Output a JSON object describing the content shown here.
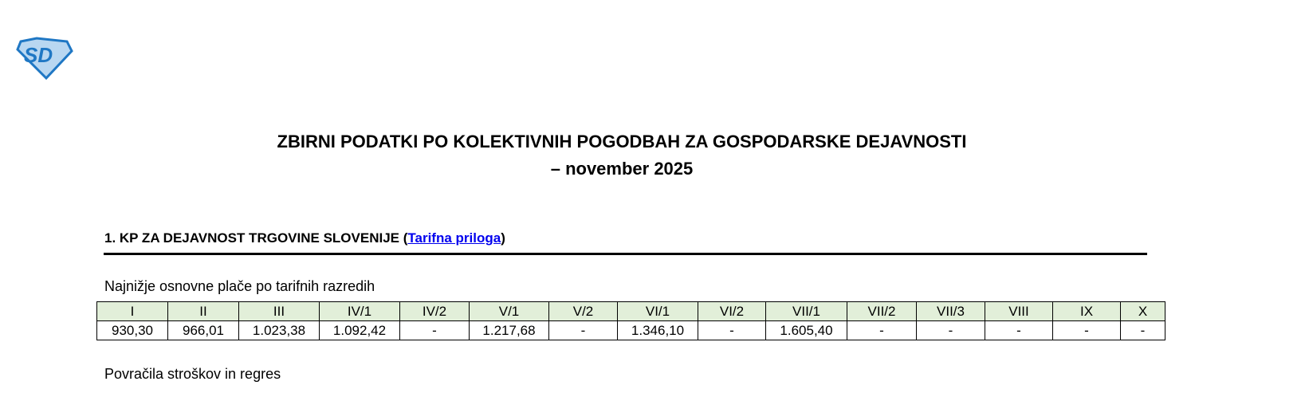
{
  "logo": {
    "text": "SD",
    "colors": {
      "primary": "#1f77c4",
      "light": "#b9d7f1"
    }
  },
  "title": {
    "line1": "ZBIRNI PODATKI PO KOLEKTIVNIH POGODBAH ZA GOSPODARSKE DEJAVNOSTI",
    "line2": "– november 2025"
  },
  "section1": {
    "prefix": "1. KP ZA DEJAVNOST TRGOVINE SLOVENIJE (",
    "link": "Tarifna priloga",
    "suffix": ")"
  },
  "wages": {
    "caption": "Najnižje osnovne plače po tarifnih razredih",
    "headers": [
      "I",
      "II",
      "III",
      "IV/1",
      "IV/2",
      "V/1",
      "V/2",
      "VI/1",
      "VI/2",
      "VII/1",
      "VII/2",
      "VII/3",
      "VIII",
      "IX",
      "X"
    ],
    "values": [
      "930,30",
      "966,01",
      "1.023,38",
      "1.092,42",
      "-",
      "1.217,68",
      "-",
      "1.346,10",
      "-",
      "1.605,40",
      "-",
      "-",
      "-",
      "-",
      "-"
    ],
    "header_bg": "#e2efd9"
  },
  "costs": {
    "caption": "Povračila stroškov in regres"
  }
}
